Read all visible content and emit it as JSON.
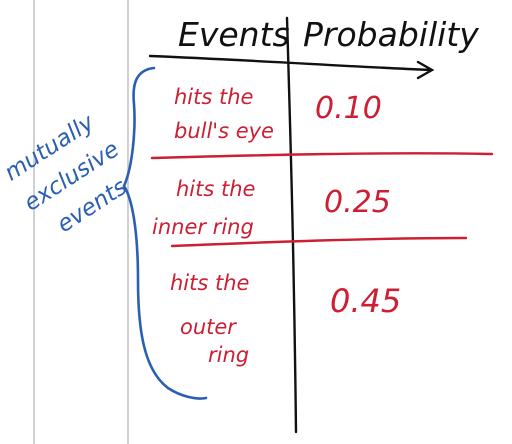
{
  "table": {
    "headers": {
      "events": "Events",
      "probability": "Probability"
    },
    "rows": [
      {
        "event_lines": [
          "hits the",
          "bull's eye"
        ],
        "probability": "0.10"
      },
      {
        "event_lines": [
          "hits the",
          "inner ring"
        ],
        "probability": "0.25"
      },
      {
        "event_lines": [
          "hits the",
          "outer",
          "ring"
        ],
        "probability": "0.45"
      }
    ]
  },
  "annotation": {
    "lines": [
      "mutually",
      "exclusive",
      "events"
    ]
  },
  "colors": {
    "ink": "#111111",
    "red": "#cc1f33",
    "blue": "#2b5fb3",
    "margin": "#cfcfcf"
  }
}
